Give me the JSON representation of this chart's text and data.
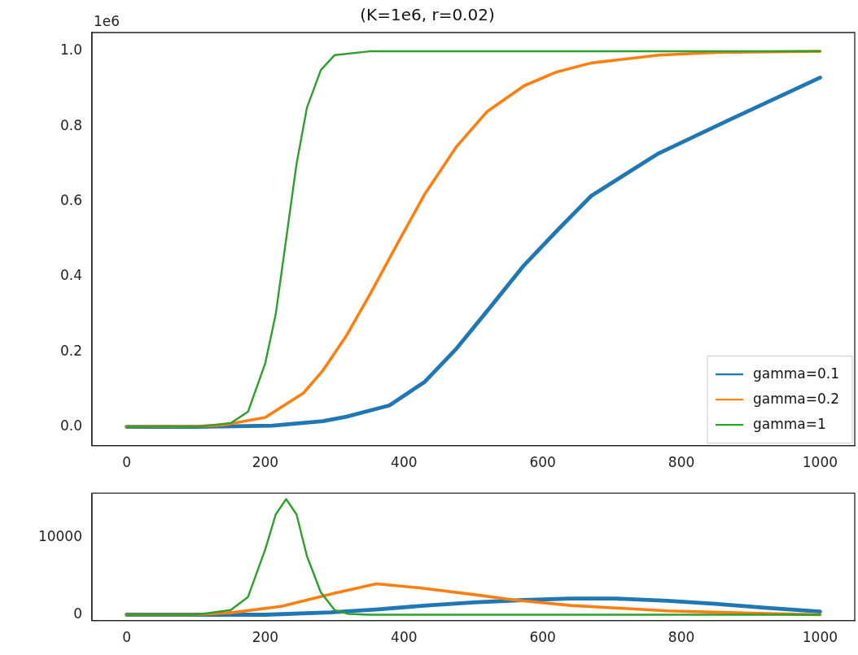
{
  "chart_data": [
    {
      "type": "line",
      "title": "(K=1e6, r=0.02)",
      "annotations": [
        "1e6"
      ],
      "legend": "bottom right",
      "grid": false,
      "xlim": [
        -50,
        1050
      ],
      "xticks": [
        0,
        200,
        400,
        600,
        800,
        1000
      ],
      "ylim": [
        -0.05,
        1.05
      ],
      "yticks": [
        {
          "value": 0,
          "label": "0.0"
        },
        0.2,
        0.4,
        0.6,
        0.8,
        {
          "value": 1,
          "label": "1.0"
        }
      ],
      "series": [
        {
          "name": "gamma=0.1",
          "color": "#1f77b4",
          "x": [
            0,
            100,
            210,
            283,
            317,
            379,
            430,
            476,
            525,
            573,
            622,
            670,
            767,
            864,
            1000
          ],
          "values": [
            0,
            0,
            0.003,
            0.015,
            0.027,
            0.057,
            0.12,
            0.209,
            0.32,
            0.43,
            0.525,
            0.615,
            0.728,
            0.813,
            0.93
          ]
        },
        {
          "name": "gamma=0.2",
          "color": "#ff7f0e",
          "x": [
            0,
            100,
            140,
            200,
            255,
            283,
            317,
            350,
            394,
            430,
            476,
            520,
            573,
            620,
            670,
            767,
            850,
            1000
          ],
          "values": [
            0,
            0.001,
            0.005,
            0.025,
            0.09,
            0.15,
            0.243,
            0.35,
            0.5,
            0.62,
            0.747,
            0.84,
            0.908,
            0.945,
            0.969,
            0.99,
            0.997,
            1
          ]
        },
        {
          "name": "gamma=1",
          "color": "#2ca02c",
          "x": [
            0,
            100,
            150,
            175,
            200,
            215,
            230,
            245,
            260,
            280,
            300,
            350,
            500,
            1000
          ],
          "values": [
            0,
            0,
            0.01,
            0.04,
            0.17,
            0.3,
            0.5,
            0.7,
            0.85,
            0.95,
            0.99,
            1,
            1,
            1
          ]
        }
      ]
    },
    {
      "type": "line",
      "grid": false,
      "xlim": [
        -50,
        1050
      ],
      "xticks": [
        0,
        200,
        400,
        600,
        800,
        1000
      ],
      "ylim": [
        -750,
        15750
      ],
      "yticks": [
        0,
        10000
      ],
      "series": [
        {
          "color": "#1f77b4",
          "x": [
            0,
            200,
            294,
            363,
            433,
            500,
            572,
            640,
            703,
            780,
            849,
            920,
            1000
          ],
          "values": [
            0,
            0,
            300,
            700,
            1200,
            1600,
            1900,
            2100,
            2100,
            1800,
            1400,
            900,
            400
          ]
        },
        {
          "color": "#ff7f0e",
          "x": [
            0,
            100,
            155,
            224,
            300,
            360,
            420,
            502,
            560,
            641,
            700,
            780,
            900,
            1000
          ],
          "values": [
            0,
            0,
            300,
            1100,
            2800,
            4000,
            3500,
            2600,
            1900,
            1200,
            900,
            500,
            200,
            0
          ]
        },
        {
          "color": "#2ca02c",
          "x": [
            0,
            100,
            150,
            175,
            200,
            215,
            230,
            245,
            260,
            280,
            300,
            320,
            350,
            1000
          ],
          "values": [
            0,
            0,
            600,
            2300,
            8500,
            13000,
            15000,
            13000,
            7600,
            2900,
            600,
            100,
            0,
            0
          ]
        }
      ]
    }
  ]
}
